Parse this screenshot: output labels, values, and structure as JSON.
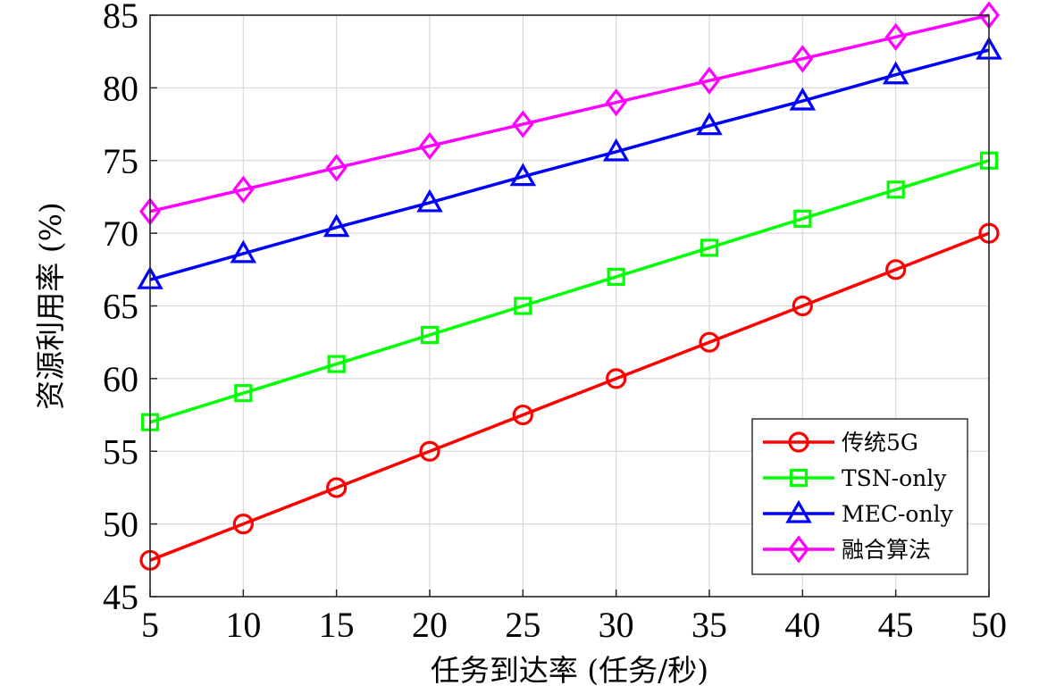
{
  "chart_data": {
    "type": "line",
    "title": "",
    "xlabel": "任务到达率 (任务/秒)",
    "ylabel": "资源利用率 (%)",
    "x": [
      5,
      10,
      15,
      20,
      25,
      30,
      35,
      40,
      45,
      50
    ],
    "xlim": [
      5,
      50
    ],
    "ylim": [
      45,
      85
    ],
    "xticks": [
      "5",
      "10",
      "15",
      "20",
      "25",
      "30",
      "35",
      "40",
      "45",
      "50"
    ],
    "yticks": [
      "45",
      "50",
      "55",
      "60",
      "65",
      "70",
      "75",
      "80",
      "85"
    ],
    "grid": true,
    "legend_position": "bottom-right",
    "series": [
      {
        "name": "传统5G",
        "color": "#ff0000",
        "marker": "circle",
        "values": [
          47.5,
          50.0,
          52.5,
          55.0,
          57.5,
          60.0,
          62.5,
          65.0,
          67.5,
          70.0
        ]
      },
      {
        "name": "TSN-only",
        "color": "#00ff00",
        "marker": "square",
        "values": [
          57.0,
          59.0,
          61.0,
          63.0,
          65.0,
          67.0,
          69.0,
          71.0,
          73.0,
          75.0
        ]
      },
      {
        "name": "MEC-only",
        "color": "#0000ff",
        "marker": "triangle",
        "values": [
          66.8,
          68.6,
          70.4,
          72.1,
          73.9,
          75.6,
          77.4,
          79.1,
          80.9,
          82.6
        ]
      },
      {
        "name": "融合算法",
        "color": "#ff00ff",
        "marker": "diamond",
        "values": [
          71.5,
          73.0,
          74.5,
          76.0,
          77.5,
          79.0,
          80.5,
          82.0,
          83.5,
          85.0
        ]
      }
    ]
  }
}
